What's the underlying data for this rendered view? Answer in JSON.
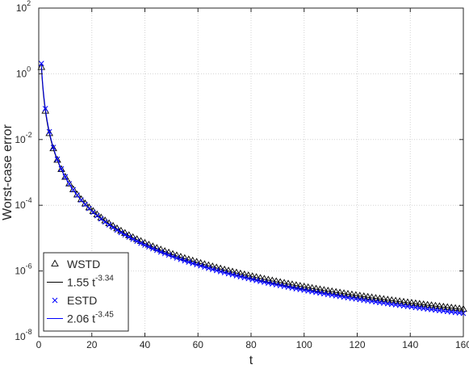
{
  "chart_data": {
    "type": "scatter",
    "title": "",
    "xlabel": "t",
    "ylabel": "Worst-case error",
    "xlim": [
      0,
      160
    ],
    "ylim": [
      1e-08,
      100
    ],
    "yscale": "log",
    "grid": true,
    "legend_position": "bottom-left",
    "x_ticks": [
      0,
      20,
      40,
      60,
      80,
      100,
      120,
      140,
      160
    ],
    "y_ticks": [
      {
        "value": 1e-08,
        "base": "10",
        "exp": "-8"
      },
      {
        "value": 1e-06,
        "base": "10",
        "exp": "-6"
      },
      {
        "value": 0.0001,
        "base": "10",
        "exp": "-4"
      },
      {
        "value": 0.01,
        "base": "10",
        "exp": "-2"
      },
      {
        "value": 1,
        "base": "10",
        "exp": "0"
      },
      {
        "value": 100,
        "base": "10",
        "exp": "2"
      }
    ],
    "series": [
      {
        "name": "WSTD",
        "kind": "markers",
        "marker": "triangle",
        "color": "#000000",
        "x_start": 1,
        "x_end": 160,
        "x_step": 1.5,
        "coef": 1.55,
        "exponent": -3.34
      },
      {
        "name": "1.55 t^-3.34",
        "legend_base": "1.55 t",
        "legend_exp": "-3.34",
        "kind": "line",
        "color": "#000000",
        "x_start": 1,
        "x_end": 160,
        "coef": 1.55,
        "exponent": -3.34
      },
      {
        "name": "ESTD",
        "kind": "markers",
        "marker": "x",
        "color": "#0000ff",
        "x_start": 1,
        "x_end": 160,
        "x_step": 1.5,
        "coef": 2.06,
        "exponent": -3.45
      },
      {
        "name": "2.06 t^-3.45",
        "legend_base": "2.06 t",
        "legend_exp": "-3.45",
        "kind": "line",
        "color": "#0000ff",
        "x_start": 1,
        "x_end": 160,
        "coef": 2.06,
        "exponent": -3.45
      }
    ]
  }
}
